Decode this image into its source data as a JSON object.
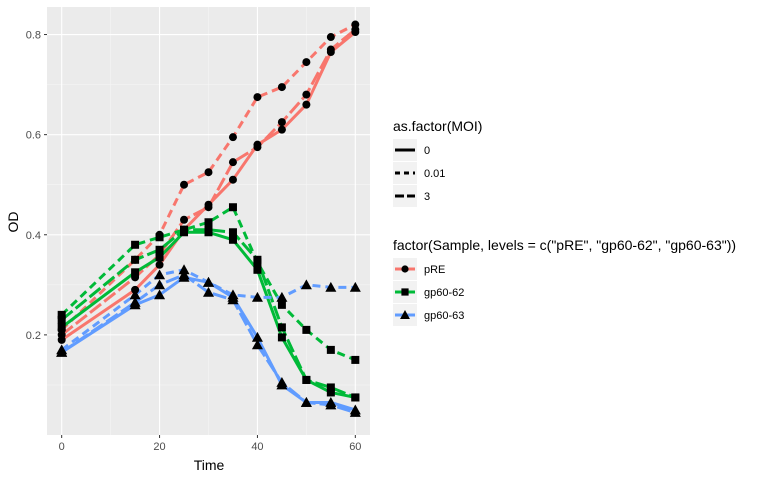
{
  "chart_data": {
    "type": "line",
    "xlabel": "Time",
    "ylabel": "OD",
    "xlim": [
      -3,
      63
    ],
    "ylim": [
      0.0,
      0.855
    ],
    "x_ticks": [
      0,
      20,
      40,
      60
    ],
    "x_tick_labels": [
      "0",
      "20",
      "40",
      "60"
    ],
    "y_ticks": [
      0.2,
      0.4,
      0.6,
      0.8
    ],
    "y_tick_labels": [
      "0.2",
      "0.4",
      "0.6",
      "0.8"
    ],
    "grid": true,
    "background": "#ebebeb",
    "legend_position": "right",
    "legend_linetype": {
      "title": "as.factor(MOI)",
      "entries": [
        {
          "label": "0",
          "dash": "solid"
        },
        {
          "label": "0.01",
          "dash": "dashed"
        },
        {
          "label": "3",
          "dash": "longdash"
        }
      ]
    },
    "legend_sample": {
      "title": "factor(Sample, levels = c(\"pRE\", \"gp60-62\", \"gp60-63\"))",
      "entries": [
        {
          "label": "pRE",
          "color": "#F8766D",
          "shape": "circle"
        },
        {
          "label": "gp60-62",
          "color": "#00BA38",
          "shape": "square"
        },
        {
          "label": "gp60-63",
          "color": "#619CFF",
          "shape": "triangle"
        }
      ]
    },
    "x": [
      0,
      15,
      20,
      25,
      30,
      35,
      40,
      45,
      50,
      55,
      60
    ],
    "series": [
      {
        "sample": "pRE",
        "moi": "0",
        "color": "#F8766D",
        "shape": "circle",
        "dash": "solid",
        "values": [
          0.19,
          0.29,
          0.34,
          0.41,
          0.46,
          0.51,
          0.58,
          0.61,
          0.66,
          0.765,
          0.805
        ]
      },
      {
        "sample": "pRE",
        "moi": "0.01",
        "color": "#F8766D",
        "shape": "circle",
        "dash": "dashed",
        "values": [
          0.21,
          0.35,
          0.4,
          0.5,
          0.525,
          0.595,
          0.675,
          0.695,
          0.745,
          0.795,
          0.82
        ]
      },
      {
        "sample": "pRE",
        "moi": "3",
        "color": "#F8766D",
        "shape": "circle",
        "dash": "longdash",
        "values": [
          0.2,
          0.315,
          0.36,
          0.43,
          0.455,
          0.545,
          0.575,
          0.625,
          0.68,
          0.77,
          0.81
        ]
      },
      {
        "sample": "gp60-62",
        "moi": "0",
        "color": "#00BA38",
        "shape": "square",
        "dash": "solid",
        "values": [
          0.215,
          0.325,
          0.355,
          0.405,
          0.405,
          0.39,
          0.33,
          0.195,
          0.11,
          0.085,
          0.075
        ]
      },
      {
        "sample": "gp60-62",
        "moi": "0.01",
        "color": "#00BA38",
        "shape": "square",
        "dash": "dashed",
        "values": [
          0.24,
          0.38,
          0.395,
          0.41,
          0.425,
          0.455,
          0.345,
          0.26,
          0.21,
          0.17,
          0.15
        ]
      },
      {
        "sample": "gp60-62",
        "moi": "3",
        "color": "#00BA38",
        "shape": "square",
        "dash": "longdash",
        "values": [
          0.23,
          0.35,
          0.37,
          0.41,
          0.41,
          0.405,
          0.35,
          0.215,
          0.11,
          0.095,
          0.075
        ]
      },
      {
        "sample": "gp60-63",
        "moi": "0",
        "color": "#619CFF",
        "shape": "triangle",
        "dash": "solid",
        "values": [
          0.165,
          0.26,
          0.28,
          0.315,
          0.305,
          0.275,
          0.195,
          0.1,
          0.065,
          0.065,
          0.05
        ]
      },
      {
        "sample": "gp60-63",
        "moi": "0.01",
        "color": "#619CFF",
        "shape": "triangle",
        "dash": "dashed",
        "values": [
          0.17,
          0.28,
          0.32,
          0.33,
          0.305,
          0.28,
          0.275,
          0.275,
          0.3,
          0.295,
          0.295
        ]
      },
      {
        "sample": "gp60-63",
        "moi": "3",
        "color": "#619CFF",
        "shape": "triangle",
        "dash": "longdash",
        "values": [
          0.165,
          0.265,
          0.3,
          0.32,
          0.285,
          0.27,
          0.18,
          0.105,
          0.065,
          0.06,
          0.045
        ]
      }
    ]
  }
}
